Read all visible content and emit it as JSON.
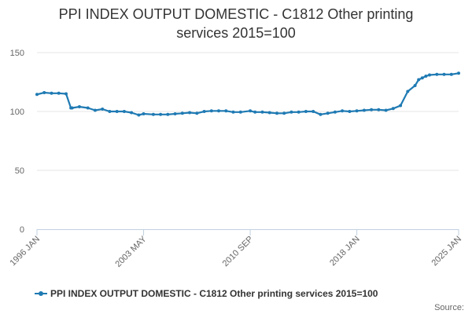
{
  "chart_data": {
    "type": "line",
    "title_line1": "PPI INDEX OUTPUT DOMESTIC - C1812 Other printing",
    "title_line2": "services 2015=100",
    "xlabel": "",
    "ylabel": "",
    "ylim": [
      0,
      150
    ],
    "yticks": [
      "0",
      "50",
      "100",
      "150"
    ],
    "xticks": [
      "1996 JAN",
      "2003 MAY",
      "2010 SEP",
      "2018 JAN",
      "2025 JAN"
    ],
    "grid": true,
    "legend_position": "bottom",
    "credit": "Source:",
    "series": [
      {
        "name": "PPI INDEX OUTPUT DOMESTIC - C1812 Other printing services 2015=100",
        "color": "#1f7ab3",
        "x": [
          "1996 JAN",
          "1996 JUL",
          "1997 JAN",
          "1997 JUL",
          "1998 JAN",
          "1998 MAY",
          "1998 JUN",
          "1998 DEC",
          "1999 JUL",
          "2000 JAN",
          "2000 JUL",
          "2001 JAN",
          "2001 JUL",
          "2002 JAN",
          "2002 JUL",
          "2003 JAN",
          "2003 MAY",
          "2004 JAN",
          "2004 JUL",
          "2005 JAN",
          "2005 JUL",
          "2006 JAN",
          "2006 JUL",
          "2007 JAN",
          "2007 JUL",
          "2008 JAN",
          "2008 JUL",
          "2009 JAN",
          "2009 JUL",
          "2010 JAN",
          "2010 SEP",
          "2011 JAN",
          "2011 JUL",
          "2012 JAN",
          "2012 JUL",
          "2013 JAN",
          "2013 JUL",
          "2014 JAN",
          "2014 JUL",
          "2015 JAN",
          "2015 JUL",
          "2016 JAN",
          "2016 JUL",
          "2017 JAN",
          "2017 JUL",
          "2018 JAN",
          "2018 JUL",
          "2019 JAN",
          "2019 JUL",
          "2020 JAN",
          "2020 JUL",
          "2021 JAN",
          "2021 JUL",
          "2022 JAN",
          "2022 APR",
          "2022 JUL",
          "2022 OCT",
          "2023 JAN",
          "2023 JUL",
          "2024 JAN",
          "2024 JUL",
          "2025 JAN"
        ],
        "values": [
          114.5,
          116,
          115.5,
          115.5,
          115,
          103,
          103,
          104,
          103,
          101,
          102,
          100,
          100,
          100,
          99,
          97,
          98,
          97.5,
          97.5,
          97.5,
          98,
          98.5,
          99,
          98.5,
          100,
          100.5,
          100.5,
          100.5,
          99.5,
          99.5,
          100.5,
          99.5,
          99.5,
          99,
          98.5,
          98.5,
          99.5,
          99.5,
          100,
          100,
          97.5,
          98.5,
          99.5,
          100.5,
          100,
          100.5,
          101,
          101.5,
          101.5,
          101,
          102.5,
          105,
          117,
          122,
          127,
          128.5,
          130,
          131,
          131.5,
          131.5,
          131.5,
          132.5
        ]
      }
    ]
  }
}
